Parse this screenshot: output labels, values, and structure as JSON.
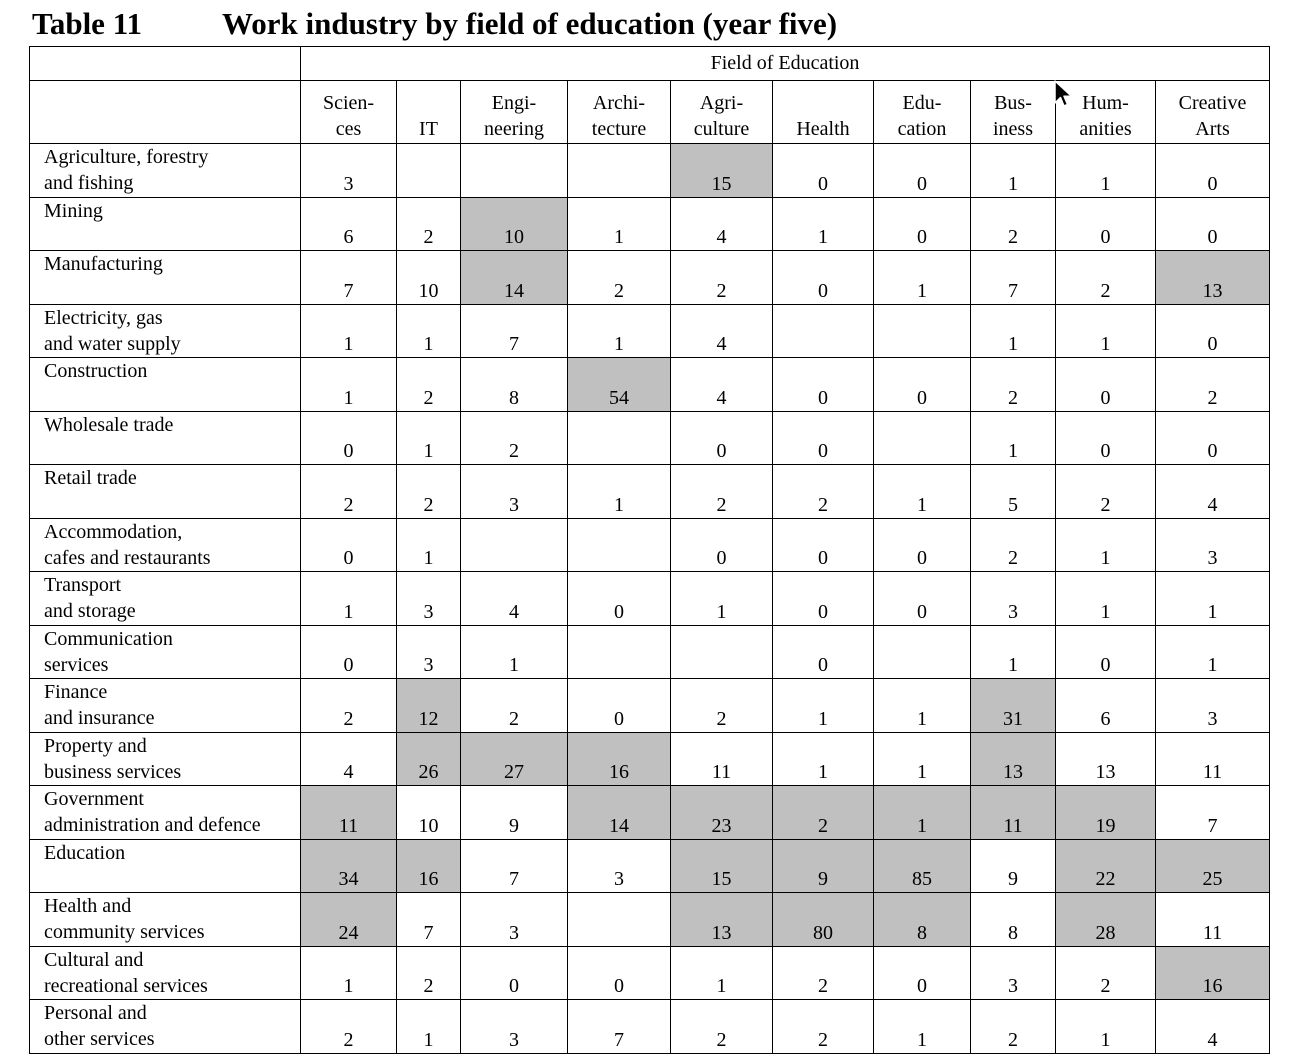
{
  "title": {
    "label": "Table 11",
    "text": "Work industry by field of education (year five)"
  },
  "table": {
    "group_header": "Field of Education",
    "columns": [
      [
        "Scien-",
        "ces"
      ],
      [
        "",
        "IT"
      ],
      [
        "Engi-",
        "neering"
      ],
      [
        "Archi-",
        "tecture"
      ],
      [
        "Agri-",
        "culture"
      ],
      [
        "",
        "Health"
      ],
      [
        "Edu-",
        "cation"
      ],
      [
        "Bus-",
        "iness"
      ],
      [
        "Hum-",
        "anities"
      ],
      [
        "Creative",
        "Arts"
      ]
    ],
    "rows": [
      {
        "label": [
          "Agriculture, forestry",
          "and fishing"
        ],
        "values": [
          "3",
          "",
          "",
          "",
          "15",
          "0",
          "0",
          "1",
          "1",
          "0"
        ],
        "shaded": [
          4
        ]
      },
      {
        "label": [
          "Mining",
          ""
        ],
        "values": [
          "6",
          "2",
          "10",
          "1",
          "4",
          "1",
          "0",
          "2",
          "0",
          "0"
        ],
        "shaded": [
          2
        ]
      },
      {
        "label": [
          "Manufacturing",
          ""
        ],
        "values": [
          "7",
          "10",
          "14",
          "2",
          "2",
          "0",
          "1",
          "7",
          "2",
          "13"
        ],
        "shaded": [
          2,
          9
        ]
      },
      {
        "label": [
          "Electricity, gas",
          "and water supply"
        ],
        "values": [
          "1",
          "1",
          "7",
          "1",
          "4",
          "",
          "",
          "1",
          "1",
          "0"
        ],
        "shaded": []
      },
      {
        "label": [
          "Construction",
          ""
        ],
        "values": [
          "1",
          "2",
          "8",
          "54",
          "4",
          "0",
          "0",
          "2",
          "0",
          "2"
        ],
        "shaded": [
          3
        ]
      },
      {
        "label": [
          "Wholesale trade",
          ""
        ],
        "values": [
          "0",
          "1",
          "2",
          "",
          "0",
          "0",
          "",
          "1",
          "0",
          "0"
        ],
        "shaded": []
      },
      {
        "label": [
          "Retail trade",
          ""
        ],
        "values": [
          "2",
          "2",
          "3",
          "1",
          "2",
          "2",
          "1",
          "5",
          "2",
          "4"
        ],
        "shaded": []
      },
      {
        "label": [
          "Accommodation,",
          "cafes and restaurants"
        ],
        "values": [
          "0",
          "1",
          "",
          "",
          "0",
          "0",
          "0",
          "2",
          "1",
          "3"
        ],
        "shaded": []
      },
      {
        "label": [
          "Transport",
          "and storage"
        ],
        "values": [
          "1",
          "3",
          "4",
          "0",
          "1",
          "0",
          "0",
          "3",
          "1",
          "1"
        ],
        "shaded": []
      },
      {
        "label": [
          "Communication",
          "services"
        ],
        "values": [
          "0",
          "3",
          "1",
          "",
          "",
          "0",
          "",
          "1",
          "0",
          "1"
        ],
        "shaded": []
      },
      {
        "label": [
          "Finance",
          "and insurance"
        ],
        "values": [
          "2",
          "12",
          "2",
          "0",
          "2",
          "1",
          "1",
          "31",
          "6",
          "3"
        ],
        "shaded": [
          1,
          7
        ]
      },
      {
        "label": [
          "Property and",
          "business services"
        ],
        "values": [
          "4",
          "26",
          "27",
          "16",
          "11",
          "1",
          "1",
          "13",
          "13",
          "11"
        ],
        "shaded": [
          1,
          2,
          3,
          7
        ]
      },
      {
        "label": [
          "Government",
          "administration and defence"
        ],
        "values": [
          "11",
          "10",
          "9",
          "14",
          "23",
          "2",
          "1",
          "11",
          "19",
          "7"
        ],
        "shaded": [
          0,
          3,
          4,
          5,
          6,
          7,
          8
        ]
      },
      {
        "label": [
          "Education",
          ""
        ],
        "values": [
          "34",
          "16",
          "7",
          "3",
          "15",
          "9",
          "85",
          "9",
          "22",
          "25"
        ],
        "shaded": [
          0,
          1,
          4,
          5,
          6,
          8,
          9
        ]
      },
      {
        "label": [
          "Health and",
          "community services"
        ],
        "values": [
          "24",
          "7",
          "3",
          "",
          "13",
          "80",
          "8",
          "8",
          "28",
          "11"
        ],
        "shaded": [
          0,
          4,
          5,
          6,
          8
        ]
      },
      {
        "label": [
          "Cultural and",
          "recreational services"
        ],
        "values": [
          "1",
          "2",
          "0",
          "0",
          "1",
          "2",
          "0",
          "3",
          "2",
          "16"
        ],
        "shaded": [
          9
        ]
      },
      {
        "label": [
          "Personal and",
          "other services"
        ],
        "values": [
          "2",
          "1",
          "3",
          "7",
          "2",
          "2",
          "1",
          "2",
          "1",
          "4"
        ],
        "shaded": []
      }
    ]
  },
  "colors": {
    "shade": "#c0c0c0",
    "border": "#000000",
    "background": "#ffffff"
  },
  "cursor": {
    "icon": "mouse-pointer-icon"
  }
}
